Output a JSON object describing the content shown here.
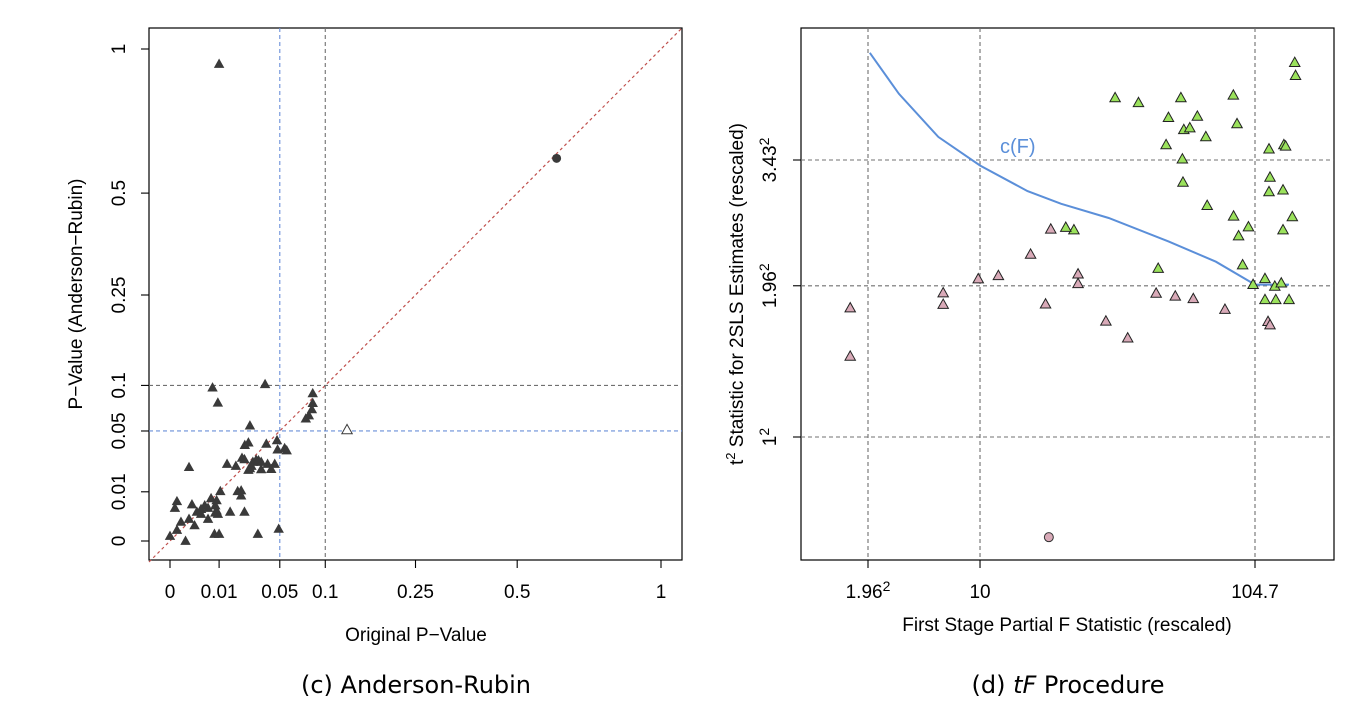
{
  "chart_data": [
    {
      "type": "scatter",
      "caption": "(c) Anderson-Rubin",
      "xlabel": "Original P−Value",
      "ylabel": "P−Value (Anderson−Rubin)",
      "x_ticks": [
        "0",
        "0.01",
        "0.05",
        "0.1",
        "0.25",
        "0.5",
        "1"
      ],
      "y_ticks": [
        "0",
        "0.01",
        "0.05",
        "0.1",
        "0.25",
        "0.5",
        "1"
      ],
      "scale": "sqrt",
      "xlim": [
        0,
        1
      ],
      "ylim": [
        0,
        1
      ],
      "reference_lines": {
        "diagonal": "y = x",
        "x": [
          0.05,
          0.1
        ],
        "y": [
          0.05,
          0.1
        ]
      },
      "colors": {
        "points": "#3a3a3a",
        "diagonal": "#c0504d",
        "ref_blue": "#6a8fd8",
        "ref_gray": "#707070"
      },
      "series": [
        {
          "marker": "filled-triangle",
          "points": [
            [
              0.01,
              0.94
            ],
            [
              0.001,
              0.0
            ],
            [
              0.0002,
              0.0005
            ],
            [
              0.0,
              0.0001
            ],
            [
              0.0005,
              0.0015
            ],
            [
              0.0001,
              0.0045
            ],
            [
              0.0002,
              0.0065
            ],
            [
              0.002,
              0.0055
            ],
            [
              0.003,
              0.0035
            ],
            [
              0.0015,
              0.002
            ],
            [
              0.004,
              0.003
            ],
            [
              0.0025,
              0.001
            ],
            [
              0.006,
              0.002
            ],
            [
              0.005,
              0.0052
            ],
            [
              0.004,
              0.0042
            ],
            [
              0.006,
              0.0045
            ],
            [
              0.007,
              0.0075
            ],
            [
              0.0085,
              0.0033
            ],
            [
              0.009,
              0.0038
            ],
            [
              0.0085,
              0.0052
            ],
            [
              0.009,
              0.0068
            ],
            [
              0.0095,
              0.003
            ],
            [
              0.0105,
              0.0102
            ],
            [
              0.0082,
              0.0002
            ],
            [
              0.01,
              0.0002
            ],
            [
              0.015,
              0.0035
            ],
            [
              0.019,
              0.0102
            ],
            [
              0.021,
              0.0085
            ],
            [
              0.023,
              0.0035
            ],
            [
              0.021,
              0.0105
            ],
            [
              0.032,
              0.0002
            ],
            [
              0.049,
              0.0006
            ],
            [
              0.0015,
              0.0225
            ],
            [
              0.018,
              0.0232
            ],
            [
              0.0135,
              0.0245
            ],
            [
              0.023,
              0.0275
            ],
            [
              0.0255,
              0.0208
            ],
            [
              0.0265,
              0.0218
            ],
            [
              0.0275,
              0.0232
            ],
            [
              0.0345,
              0.0212
            ],
            [
              0.0425,
              0.0213
            ],
            [
              0.0455,
              0.0245
            ],
            [
              0.048,
              0.0345
            ],
            [
              0.0385,
              0.039
            ],
            [
              0.0475,
              0.0418
            ],
            [
              0.0545,
              0.0355
            ],
            [
              0.0565,
              0.0338
            ],
            [
              0.0255,
              0.04
            ],
            [
              0.0215,
              0.0285
            ],
            [
              0.0285,
              0.0258
            ],
            [
              0.0308,
              0.0272
            ],
            [
              0.0325,
              0.0268
            ],
            [
              0.0345,
              0.0258
            ],
            [
              0.0395,
              0.0245
            ],
            [
              0.0232,
              0.038
            ],
            [
              0.0265,
              0.055
            ],
            [
              0.0095,
              0.079
            ],
            [
              0.0075,
              0.0972
            ],
            [
              0.0375,
              0.1015
            ],
            [
              0.0765,
              0.0618
            ],
            [
              0.08,
              0.065
            ],
            [
              0.0835,
              0.0715
            ],
            [
              0.0845,
              0.0785
            ],
            [
              0.0845,
              0.09
            ]
          ]
        },
        {
          "marker": "open-triangle",
          "points": [
            [
              0.13,
              0.051
            ]
          ]
        },
        {
          "marker": "filled-circle",
          "points": [
            [
              0.62,
              0.605
            ]
          ]
        }
      ]
    },
    {
      "type": "scatter",
      "caption_prefix": "(d) ",
      "caption_italic": "tF",
      "caption_suffix": " Procedure",
      "xlabel": "First Stage Partial F Statistic (rescaled)",
      "ylabel_prefix": "t",
      "ylabel_sup": "2",
      "ylabel_rest": " Statistic for 2SLS Estimates (rescaled)",
      "x_ticks": [
        {
          "label": "1.96",
          "sup": "2"
        },
        {
          "label": "10",
          "sup": ""
        },
        {
          "label": "104.7",
          "sup": ""
        }
      ],
      "y_ticks": [
        {
          "label": "1",
          "sup": "2"
        },
        {
          "label": "1.96",
          "sup": "2"
        },
        {
          "label": "3.43",
          "sup": "2"
        }
      ],
      "curve_label": "c(F)",
      "scale": "log",
      "reference_lines": {
        "x": [
          3.8416,
          10,
          104.7
        ],
        "y": [
          1,
          3.8416,
          11.7649
        ]
      },
      "colors": {
        "curve": "#5b8fd9",
        "green": "#9be25c",
        "pink": "#d9aab8",
        "ref_gray": "#707070"
      },
      "curve_points": [
        [
          3.9,
          30.55
        ],
        [
          5.0,
          21.2
        ],
        [
          7.0,
          14.45
        ],
        [
          10.0,
          11.2
        ],
        [
          15.0,
          8.92
        ],
        [
          20.0,
          7.97
        ],
        [
          30.0,
          7.02
        ],
        [
          50.0,
          5.7
        ],
        [
          75.0,
          4.76
        ],
        [
          104.7,
          3.88
        ],
        [
          140.0,
          3.88
        ]
      ],
      "series": [
        {
          "name": "",
          "marker": "green-triangle",
          "points": [
            [
              147,
              27.97
            ],
            [
              148,
              24.91
            ],
            [
              31.7,
              20.45
            ],
            [
              38.7,
              19.57
            ],
            [
              55.6,
              20.45
            ],
            [
              50.0,
              17.15
            ],
            [
              64.0,
              17.34
            ],
            [
              57.0,
              15.39
            ],
            [
              60.0,
              15.64
            ],
            [
              68.8,
              14.45
            ],
            [
              89.8,
              16.23
            ],
            [
              87.0,
              20.92
            ],
            [
              49.0,
              13.46
            ],
            [
              118.0,
              12.96
            ],
            [
              134.0,
              13.46
            ],
            [
              136.0,
              13.3
            ],
            [
              56.3,
              11.85
            ],
            [
              119.0,
              10.08
            ],
            [
              56.6,
              9.64
            ],
            [
              133.0,
              9.0
            ],
            [
              118.0,
              8.86
            ],
            [
              69.6,
              7.84
            ],
            [
              144.0,
              7.09
            ],
            [
              87.2,
              7.13
            ],
            [
              133.0,
              6.31
            ],
            [
              99.0,
              6.48
            ],
            [
              91.0,
              5.98
            ],
            [
              22.3,
              6.31
            ],
            [
              20.8,
              6.45
            ],
            [
              45.8,
              4.48
            ],
            [
              114.0,
              4.09
            ],
            [
              124.0,
              3.82
            ],
            [
              131.0,
              3.93
            ],
            [
              103.0,
              3.88
            ],
            [
              94.2,
              4.62
            ],
            [
              114.0,
              3.39
            ],
            [
              125.0,
              3.39
            ],
            [
              140.0,
              3.39
            ]
          ]
        },
        {
          "name": "",
          "marker": "pink-triangle",
          "points": [
            [
              3.3,
              3.15
            ],
            [
              3.3,
              2.05
            ],
            [
              7.3,
              3.6
            ],
            [
              7.3,
              3.25
            ],
            [
              9.85,
              4.08
            ],
            [
              11.7,
              4.2
            ],
            [
              15.4,
              5.08
            ],
            [
              18.3,
              6.35
            ],
            [
              23.1,
              3.91
            ],
            [
              23.1,
              4.26
            ],
            [
              17.5,
              3.26
            ],
            [
              29.3,
              2.8
            ],
            [
              35.3,
              2.41
            ],
            [
              45.0,
              3.59
            ],
            [
              53.0,
              3.5
            ],
            [
              61.8,
              3.42
            ],
            [
              81.0,
              3.11
            ],
            [
              117.0,
              2.79
            ],
            [
              119.0,
              2.71
            ]
          ]
        },
        {
          "name": "",
          "marker": "pink-circle",
          "points": [
            [
              18.0,
              0.41
            ]
          ]
        }
      ]
    }
  ]
}
